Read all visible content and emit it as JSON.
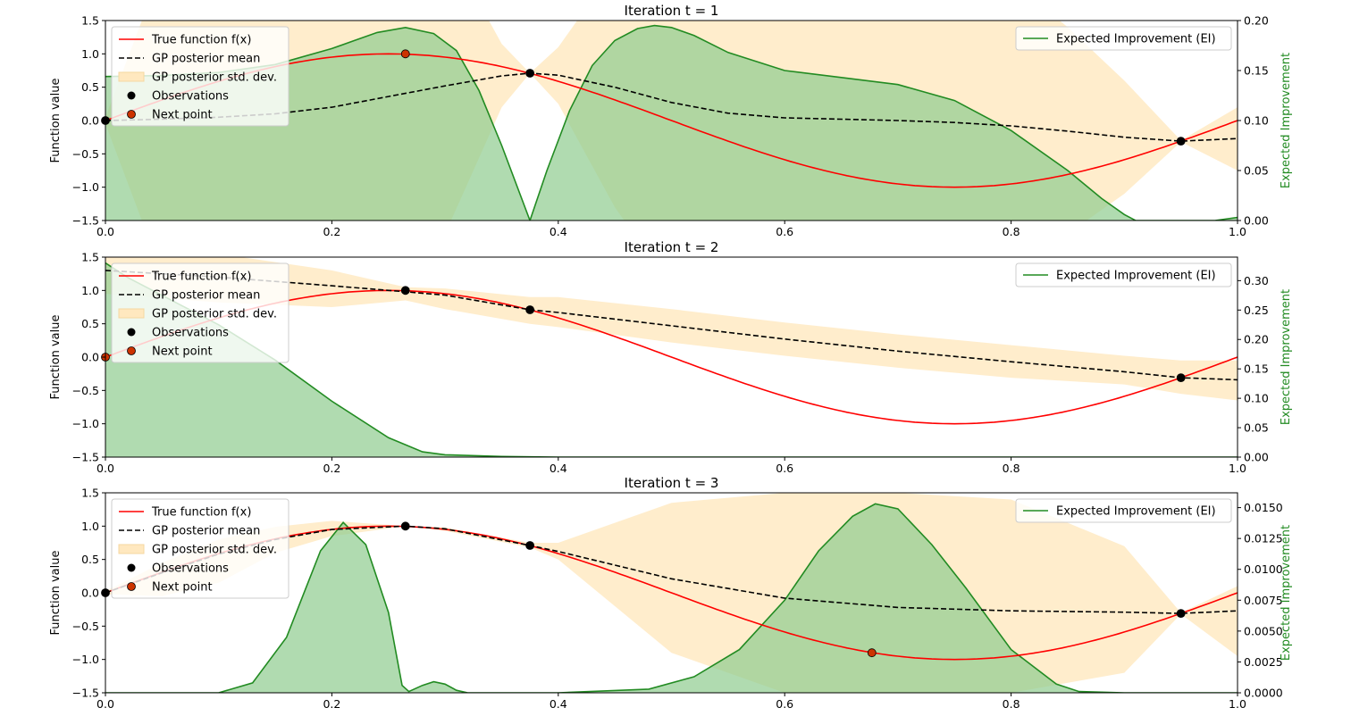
{
  "legend_labels": {
    "true_function": "True function f(x)",
    "gp_mean": "GP posterior mean",
    "gp_std": "GP posterior std. dev.",
    "observations": "Observations",
    "next_point": "Next point",
    "ei": "Expected Improvement (EI)"
  },
  "colors": {
    "true_function": "#ff0000",
    "gp_mean": "#000000",
    "gp_std_fill": "#ffe8bf",
    "ei_line": "#228b22",
    "ei_fill": "#8fcc8f",
    "observation": "#000000",
    "next_point": "#cc3300"
  },
  "chart_data": [
    {
      "type": "line",
      "title": "Iteration t = 1",
      "xlabel": "",
      "ylabel": "Function value",
      "y2label": "Expected Improvement",
      "xlim": [
        0,
        1
      ],
      "ylim": [
        -1.5,
        1.5
      ],
      "y2lim": [
        0,
        0.2
      ],
      "xticks": [
        "0.0",
        "0.2",
        "0.4",
        "0.6",
        "0.8",
        "1.0"
      ],
      "yticks": [
        "−1.5",
        "−1.0",
        "−0.5",
        "0.0",
        "0.5",
        "1.0",
        "1.5"
      ],
      "y2ticks": [
        "0.00",
        "0.05",
        "0.10",
        "0.15",
        "0.20"
      ],
      "legend_placement": "upper-left",
      "ei_legend_placement": "upper-right",
      "observations": [
        {
          "x": 0.0,
          "y": 0.0
        },
        {
          "x": 0.375,
          "y": 0.71
        },
        {
          "x": 0.95,
          "y": -0.31
        }
      ],
      "next_point": {
        "x": 0.265,
        "y": 1.0
      },
      "gp_mean": {
        "x": [
          0,
          0.05,
          0.1,
          0.15,
          0.2,
          0.25,
          0.3,
          0.35,
          0.375,
          0.4,
          0.45,
          0.5,
          0.55,
          0.6,
          0.65,
          0.7,
          0.75,
          0.8,
          0.85,
          0.9,
          0.95,
          1.0
        ],
        "y": [
          0.0,
          0.02,
          0.05,
          0.1,
          0.2,
          0.36,
          0.52,
          0.67,
          0.71,
          0.68,
          0.5,
          0.27,
          0.11,
          0.04,
          0.02,
          0.0,
          -0.03,
          -0.08,
          -0.16,
          -0.25,
          -0.31,
          -0.27
        ]
      },
      "gp_std": {
        "x": [
          0,
          0.05,
          0.1,
          0.15,
          0.2,
          0.25,
          0.3,
          0.35,
          0.375,
          0.4,
          0.45,
          0.5,
          0.55,
          0.6,
          0.65,
          0.7,
          0.75,
          0.8,
          0.85,
          0.9,
          0.95,
          1.0
        ],
        "upper": [
          0.05,
          2.3,
          3.8,
          4.6,
          4.7,
          4.0,
          2.7,
          1.15,
          0.71,
          1.1,
          2.3,
          3.0,
          3.2,
          3.2,
          3.1,
          2.9,
          2.6,
          2.1,
          1.4,
          0.6,
          -0.3,
          0.2
        ],
        "lower": [
          -0.05,
          -2.3,
          -3.8,
          -4.4,
          -4.3,
          -3.3,
          -1.7,
          0.2,
          0.71,
          0.25,
          -1.3,
          -2.5,
          -3.0,
          -3.1,
          -3.1,
          -2.9,
          -2.7,
          -2.3,
          -1.7,
          -1.1,
          -0.32,
          -0.75
        ]
      },
      "ei": {
        "x": [
          0,
          0.05,
          0.1,
          0.15,
          0.2,
          0.22,
          0.24,
          0.265,
          0.29,
          0.31,
          0.33,
          0.35,
          0.375,
          0.39,
          0.41,
          0.43,
          0.45,
          0.47,
          0.485,
          0.5,
          0.52,
          0.55,
          0.6,
          0.65,
          0.7,
          0.75,
          0.8,
          0.85,
          0.88,
          0.9,
          0.91,
          0.95,
          0.98,
          1.0
        ],
        "y": [
          0.144,
          0.145,
          0.148,
          0.156,
          0.172,
          0.18,
          0.188,
          0.193,
          0.187,
          0.17,
          0.13,
          0.075,
          0.0,
          0.05,
          0.11,
          0.155,
          0.18,
          0.192,
          0.195,
          0.193,
          0.185,
          0.168,
          0.15,
          0.143,
          0.136,
          0.12,
          0.09,
          0.05,
          0.022,
          0.006,
          0.0,
          0.0,
          0.0,
          0.003
        ]
      }
    },
    {
      "type": "line",
      "title": "Iteration t = 2",
      "xlabel": "",
      "ylabel": "Function value",
      "y2label": "Expected Improvement",
      "xlim": [
        0,
        1
      ],
      "ylim": [
        -1.5,
        1.5
      ],
      "y2lim": [
        0,
        0.34
      ],
      "xticks": [
        "0.0",
        "0.2",
        "0.4",
        "0.6",
        "0.8",
        "1.0"
      ],
      "yticks": [
        "−1.5",
        "−1.0",
        "−0.5",
        "0.0",
        "0.5",
        "1.0",
        "1.5"
      ],
      "y2ticks": [
        "0.00",
        "0.05",
        "0.10",
        "0.15",
        "0.20",
        "0.25",
        "0.30"
      ],
      "legend_placement": "upper-left",
      "ei_legend_placement": "upper-right",
      "observations": [
        {
          "x": 0.265,
          "y": 1.0
        },
        {
          "x": 0.375,
          "y": 0.71
        },
        {
          "x": 0.95,
          "y": -0.31
        }
      ],
      "next_point": {
        "x": 0.0,
        "y": 0.0
      },
      "gp_mean": {
        "x": [
          0,
          0.1,
          0.2,
          0.265,
          0.3,
          0.375,
          0.4,
          0.5,
          0.6,
          0.7,
          0.8,
          0.9,
          0.95,
          1.0
        ],
        "y": [
          1.3,
          1.2,
          1.07,
          0.98,
          0.93,
          0.71,
          0.67,
          0.47,
          0.27,
          0.09,
          -0.07,
          -0.22,
          -0.31,
          -0.34
        ]
      },
      "gp_std": {
        "x": [
          0,
          0.1,
          0.2,
          0.265,
          0.3,
          0.375,
          0.4,
          0.5,
          0.6,
          0.7,
          0.8,
          0.9,
          0.95,
          1.0
        ],
        "upper": [
          1.7,
          1.55,
          1.3,
          1.05,
          1.03,
          0.9,
          0.9,
          0.72,
          0.52,
          0.34,
          0.18,
          0.02,
          -0.05,
          -0.05
        ],
        "lower": [
          0.95,
          0.82,
          0.75,
          0.85,
          0.72,
          0.5,
          0.45,
          0.22,
          0.02,
          -0.16,
          -0.31,
          -0.41,
          -0.55,
          -0.65
        ]
      },
      "ei": {
        "x": [
          0,
          0.02,
          0.05,
          0.1,
          0.15,
          0.2,
          0.25,
          0.28,
          0.3,
          0.35,
          0.4,
          0.6,
          0.8,
          1.0
        ],
        "y": [
          0.33,
          0.305,
          0.275,
          0.225,
          0.165,
          0.095,
          0.033,
          0.009,
          0.004,
          0.001,
          0.0,
          0.0,
          0.0,
          0.0
        ]
      }
    },
    {
      "type": "line",
      "title": "Iteration t = 3",
      "xlabel": "",
      "ylabel": "Function value",
      "y2label": "Expected Improvement",
      "xlim": [
        0,
        1
      ],
      "ylim": [
        -1.5,
        1.5
      ],
      "y2lim": [
        0,
        0.0162
      ],
      "xticks": [
        "0.0",
        "0.2",
        "0.4",
        "0.6",
        "0.8",
        "1.0"
      ],
      "yticks": [
        "−1.5",
        "−1.0",
        "−0.5",
        "0.0",
        "0.5",
        "1.0",
        "1.5"
      ],
      "y2ticks": [
        "0.0000",
        "0.0025",
        "0.0050",
        "0.0075",
        "0.0100",
        "0.0125",
        "0.0150"
      ],
      "legend_placement": "upper-left",
      "ei_legend_placement": "upper-right",
      "observations": [
        {
          "x": 0.0,
          "y": 0.0
        },
        {
          "x": 0.265,
          "y": 1.0
        },
        {
          "x": 0.375,
          "y": 0.71
        },
        {
          "x": 0.95,
          "y": -0.31
        }
      ],
      "next_point": {
        "x": 0.677,
        "y": -0.9
      },
      "gp_mean": {
        "x": [
          0,
          0.05,
          0.1,
          0.15,
          0.2,
          0.265,
          0.3,
          0.375,
          0.4,
          0.5,
          0.6,
          0.7,
          0.8,
          0.9,
          0.95,
          1.0
        ],
        "y": [
          0.0,
          0.3,
          0.58,
          0.8,
          0.95,
          1.0,
          0.96,
          0.71,
          0.62,
          0.21,
          -0.08,
          -0.22,
          -0.27,
          -0.29,
          -0.31,
          -0.27
        ]
      },
      "gp_std": {
        "x": [
          0,
          0.05,
          0.1,
          0.15,
          0.2,
          0.265,
          0.3,
          0.375,
          0.4,
          0.5,
          0.6,
          0.7,
          0.8,
          0.9,
          0.95,
          1.0
        ],
        "upper": [
          0.02,
          0.45,
          0.8,
          0.99,
          1.08,
          1.0,
          0.98,
          0.75,
          0.75,
          1.35,
          1.5,
          1.5,
          1.4,
          0.7,
          -0.3,
          0.1
        ],
        "lower": [
          -0.02,
          -0.05,
          0.15,
          0.6,
          0.85,
          1.0,
          0.93,
          0.68,
          0.5,
          -0.9,
          -1.5,
          -1.5,
          -1.5,
          -1.2,
          -0.32,
          -0.95
        ]
      },
      "ei": {
        "x": [
          0,
          0.1,
          0.13,
          0.16,
          0.19,
          0.21,
          0.23,
          0.25,
          0.262,
          0.268,
          0.28,
          0.29,
          0.3,
          0.31,
          0.32,
          0.4,
          0.48,
          0.52,
          0.56,
          0.6,
          0.63,
          0.66,
          0.68,
          0.7,
          0.73,
          0.76,
          0.8,
          0.84,
          0.86,
          0.9,
          1.0
        ],
        "y": [
          0.0,
          0.0,
          0.0008,
          0.0045,
          0.0115,
          0.0138,
          0.012,
          0.0065,
          0.0006,
          0.0001,
          0.0006,
          0.0009,
          0.0007,
          0.0002,
          0.0,
          0.0,
          0.0003,
          0.0013,
          0.0035,
          0.0075,
          0.0115,
          0.0143,
          0.0153,
          0.0149,
          0.012,
          0.0085,
          0.0035,
          0.0007,
          0.0001,
          0.0,
          0.0
        ]
      }
    }
  ]
}
